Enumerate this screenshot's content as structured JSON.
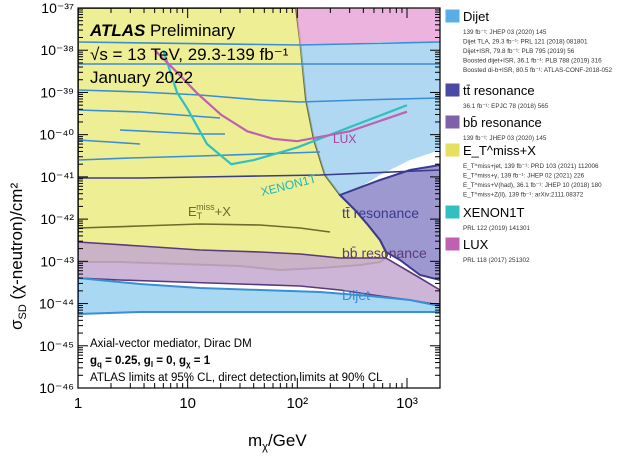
{
  "chart_data": {
    "type": "area",
    "experiment": "ATLAS",
    "status": "Preliminary",
    "energy_label": "√s = 13 TeV, 29.3-139 fb⁻¹",
    "date_label": "January 2022",
    "xlabel": "m",
    "xlabel_sub": "χ",
    "xlabel_unit": "/GeV",
    "ylabel": "σ",
    "ylabel_sub": "SD",
    "ylabel_rest": " (χ-neutron)/cm²",
    "xscale": "log",
    "yscale": "log",
    "xlim": [
      1,
      2000
    ],
    "ylim": [
      1e-46,
      1e-37
    ],
    "x_ticks": [
      {
        "value": 1,
        "label": "1"
      },
      {
        "value": 10,
        "label": "10"
      },
      {
        "value": 100,
        "label": "10²"
      },
      {
        "value": 1000,
        "label": "10³"
      }
    ],
    "y_ticks": [
      {
        "value": 1e-46,
        "label": "10⁻⁴⁶"
      },
      {
        "value": 1e-45,
        "label": "10⁻⁴⁵"
      },
      {
        "value": 1e-44,
        "label": "10⁻⁴⁴"
      },
      {
        "value": 1e-43,
        "label": "10⁻⁴³"
      },
      {
        "value": 1e-42,
        "label": "10⁻⁴²"
      },
      {
        "value": 1e-41,
        "label": "10⁻⁴¹"
      },
      {
        "value": 1e-40,
        "label": "10⁻⁴⁰"
      },
      {
        "value": 1e-39,
        "label": "10⁻³⁹"
      },
      {
        "value": 1e-38,
        "label": "10⁻³⁸"
      },
      {
        "value": 1e-37,
        "label": "10⁻³⁷"
      }
    ],
    "annotations": {
      "model": "Axial-vector mediator, Dirac DM",
      "couplings": "g_q = 0.25, g_l = 0, g_χ = 1",
      "cl_note": "ATLAS limits at 95% CL, direct detection limits at 90% CL"
    },
    "region_labels": [
      {
        "text": "E_T^miss+X",
        "color": "#6b6b2a"
      },
      {
        "text": "XENON1T",
        "color": "#22b5b5"
      },
      {
        "text": "LUX",
        "color": "#a8409a"
      },
      {
        "text": "tt̄ resonance",
        "color": "#3a3a8e"
      },
      {
        "text": "bb̄ resonance",
        "color": "#5a3a7a"
      },
      {
        "text": "Dijet",
        "color": "#3a8ed6"
      }
    ],
    "series": [
      {
        "name": "Dijet",
        "color": "#5aaee6",
        "refs": [
          "139 fb⁻¹: JHEP 03 (2020) 145",
          "Dijet TLA, 29.3 fb⁻¹: PRL 121 (2018) 081801",
          "Dijet+ISR, 79.8 fb⁻¹: PLB 795 (2019) 56",
          "Boosted dijet+ISR, 36.1 fb⁻¹: PLB 788 (2019) 316",
          "Boosted di-b+ISR, 80.5 fb⁻¹: ATLAS-CONF-2018-052"
        ],
        "curve": {
          "x": [
            1,
            2,
            5,
            10,
            30,
            100,
            300,
            600,
            900,
            1200,
            2000
          ],
          "y": [
            8e-45,
            7e-45,
            6e-45,
            5.5e-45,
            5e-45,
            4.5e-45,
            4.5e-45,
            5e-45,
            6e-45,
            8e-45,
            1e-44
          ]
        }
      },
      {
        "name": "tt̄ resonance",
        "color": "#4a4aa6",
        "refs": [
          "36.1 fb⁻¹: EPJC 78 (2018) 565"
        ],
        "curve": {
          "x": [
            1,
            10,
            100,
            300,
            500,
            600
          ],
          "y": [
            2e-43,
            2e-43,
            1.8e-43,
            1.8e-43,
            2e-43,
            1e-42
          ]
        }
      },
      {
        "name": "bb̄ resonance",
        "color": "#8060a8",
        "refs": [
          "139 fb⁻¹: JHEP 03 (2020) 145"
        ],
        "curve": {
          "x": [
            1,
            10,
            100,
            300,
            600,
            1000,
            2000
          ],
          "y": [
            1.5e-43,
            1.2e-43,
            6e-44,
            4e-44,
            3e-44,
            2.5e-44,
            2e-44
          ]
        }
      },
      {
        "name": "E_T^miss+X",
        "color": "#e6e060",
        "refs": [
          "E_T^miss+jet, 139 fb⁻¹: PRD 103 (2021) 112006",
          "E_T^miss+γ, 139 fb⁻¹: JHEP 02 (2021) 226",
          "E_T^miss+V(had), 36.1 fb⁻¹: JHEP 10 (2018) 180",
          "E_T^miss+Z(ll), 139 fb⁻¹: arXiv:2111.08372"
        ],
        "curve": {
          "x": [
            1,
            3,
            10,
            30,
            100,
            200,
            300,
            400,
            500,
            600,
            620
          ],
          "y": [
            1e-43,
            1e-43,
            1.2e-43,
            1.3e-43,
            1.2e-43,
            1.3e-43,
            1.5e-43,
            3e-43,
            1e-42,
            1e-41,
            1e-37
          ]
        }
      },
      {
        "name": "XENON1T",
        "color": "#30c0c0",
        "refs": [
          "PRL 122 (2019) 141301"
        ],
        "curve": {
          "x": [
            6,
            8,
            10,
            15,
            25,
            40,
            100,
            300,
            1000
          ],
          "y": [
            1e-38,
            1e-39,
            4e-40,
            6e-41,
            2e-41,
            2.5e-41,
            5e-41,
            1.5e-40,
            5e-40
          ]
        }
      },
      {
        "name": "LUX",
        "color": "#c060b0",
        "refs": [
          "PRL 118 (2017) 251302"
        ],
        "curve": {
          "x": [
            5,
            8,
            12,
            20,
            35,
            60,
            100,
            300,
            1000
          ],
          "y": [
            1e-38,
            3e-39,
            1e-39,
            3e-40,
            1.2e-40,
            8e-41,
            7e-41,
            1.2e-40,
            3.5e-40
          ]
        }
      }
    ]
  }
}
